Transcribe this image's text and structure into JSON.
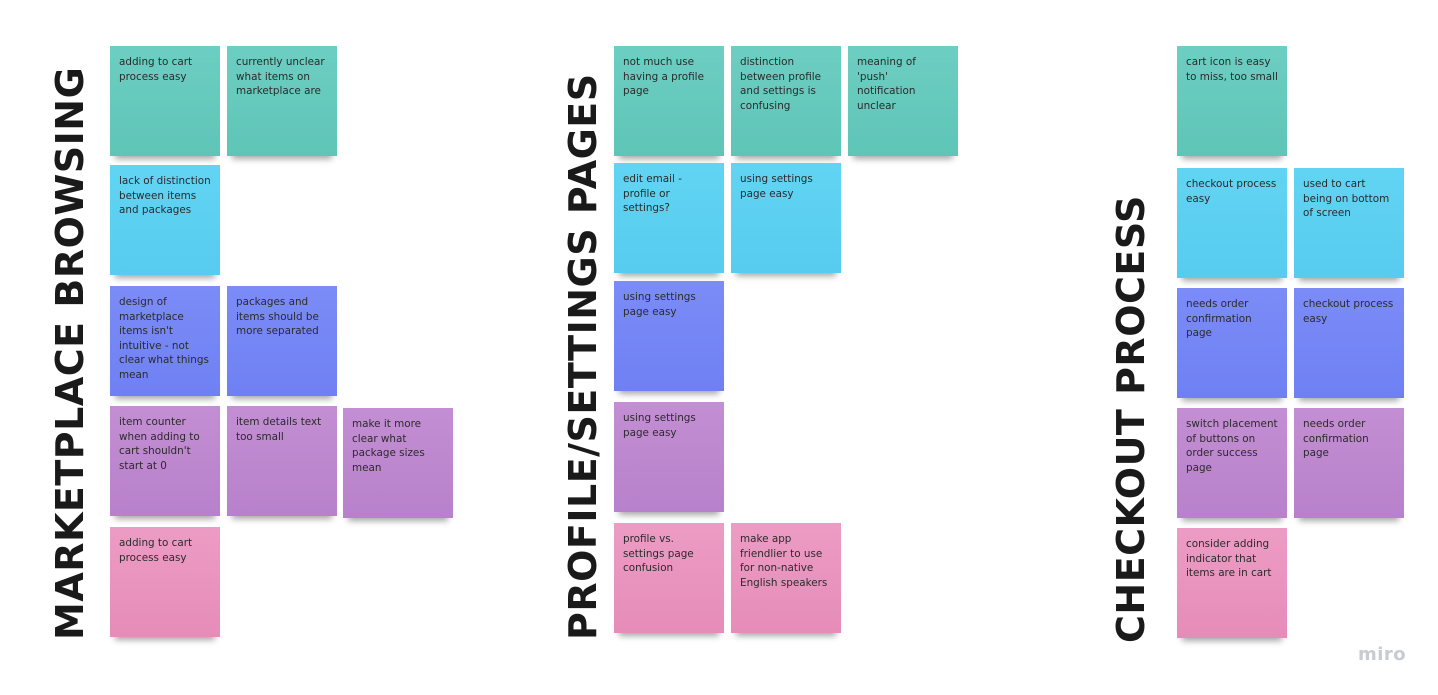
{
  "board": {
    "titles": {
      "marketplace": "MARKETPLACE BROWSING",
      "profile": "PROFILE/SETTINGS PAGES",
      "checkout": "CHECKOUT PROCESS"
    },
    "logo": "miro"
  },
  "colors": {
    "teal": "#5ec5b7",
    "sky": "#57ccef",
    "blue": "#6f80f3",
    "purple": "#b881cb",
    "pink": "#e68cb9"
  },
  "marketplace": {
    "n1": "adding to cart process easy",
    "n2": "currently unclear what items on marketplace are",
    "n3": "lack of distinction between items and packages",
    "n4": "design of marketplace items isn't intuitive - not clear what things mean",
    "n5": "packages and items should be more separated",
    "n6": "item counter when adding to cart shouldn't start at 0",
    "n7": "item details text too small",
    "n8": "make it more clear what package sizes mean",
    "n9": "adding to cart process easy"
  },
  "profile": {
    "n1": "not much use having a profile page",
    "n2": "distinction between profile and settings is confusing",
    "n3": "meaning of 'push' notification unclear",
    "n4": "edit email - profile or settings?",
    "n5": "using settings page easy",
    "n6": "using settings page easy",
    "n7": "using settings page easy",
    "n8": "profile vs. settings page confusion",
    "n9": "make app friendlier to use for non-native English speakers"
  },
  "checkout": {
    "n1": "cart icon is easy to miss, too small",
    "n2": "checkout process easy",
    "n3": "used to cart being on bottom of screen",
    "n4": "needs order confirmation page",
    "n5": "checkout process easy",
    "n6": "switch placement of buttons on order success page",
    "n7": "needs order confirmation page",
    "n8": "consider adding indicator that items are in cart"
  }
}
